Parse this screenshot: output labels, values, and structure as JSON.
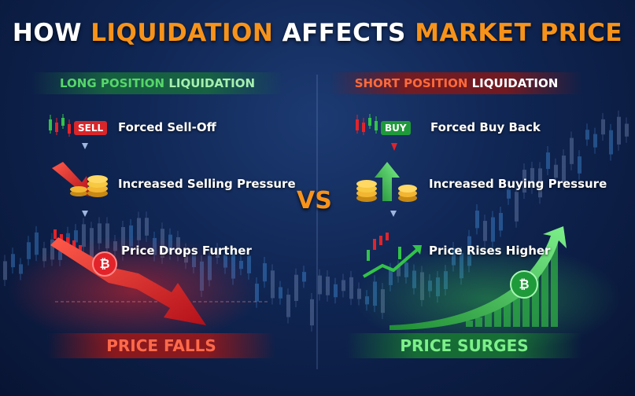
{
  "title": {
    "part1": "HOW ",
    "part2": "LIQUIDATION",
    "part3": " AFFECTS ",
    "part4": "MARKET PRICE"
  },
  "left": {
    "heading": {
      "part1": "LONG POSITION ",
      "part2": "LIQUIDATION"
    },
    "tag": "SELL",
    "steps": [
      "Forced Sell-Off",
      "Increased Selling Pressure",
      "Price Drops Further"
    ],
    "result": "PRICE FALLS"
  },
  "right": {
    "heading": {
      "part1": "SHORT POSITION ",
      "part2": "LIQUIDATION"
    },
    "tag": "BUY",
    "steps": [
      "Forced Buy Back",
      "Increased Buying Pressure",
      "Price Rises Higher"
    ],
    "result": "PRICE SURGES"
  },
  "vs": "VS",
  "bitcoin_symbol": "₿",
  "colors": {
    "orange": "#f7931a",
    "green": "#33c24a",
    "red": "#e2232a",
    "bg": "#0f2552"
  }
}
